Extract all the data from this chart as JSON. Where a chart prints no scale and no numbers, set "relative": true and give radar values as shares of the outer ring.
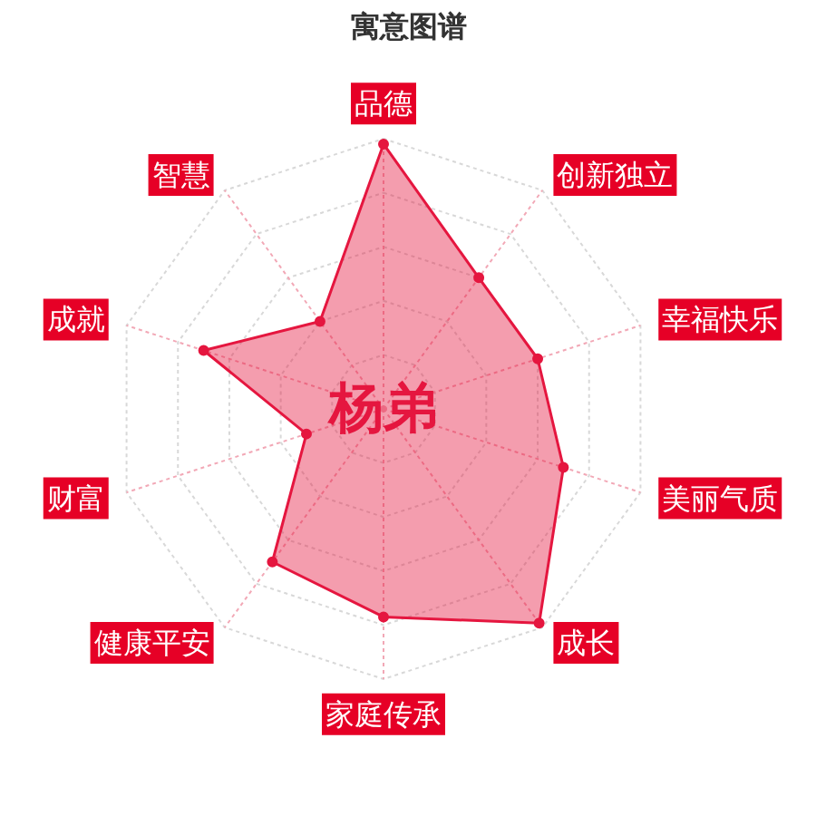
{
  "chart_data": {
    "type": "radar",
    "title": "寓意图谱",
    "categories": [
      "品德",
      "创新独立",
      "幸福快乐",
      "美丽气质",
      "成长",
      "家庭传承",
      "健康平安",
      "财富",
      "成就",
      "智慧"
    ],
    "relative": true,
    "series": [
      {
        "color": "#e5163f",
        "values": [
          0.98,
          0.6,
          0.6,
          0.7,
          0.98,
          0.77,
          0.7,
          0.3,
          0.7,
          0.4
        ]
      }
    ],
    "annotations": [
      "杨弟"
    ],
    "grid": true,
    "marker": "circle"
  }
}
